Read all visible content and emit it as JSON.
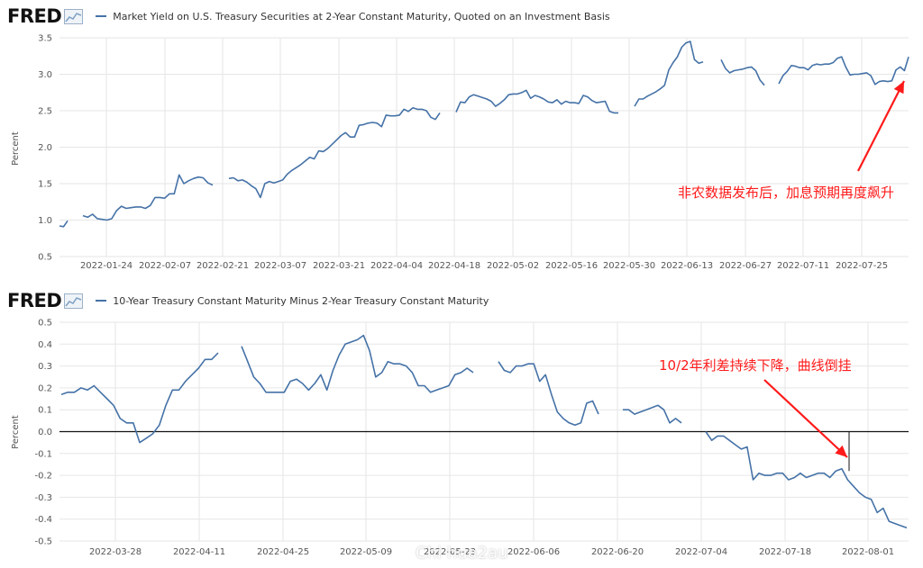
{
  "brand": {
    "logo": "FRED",
    "logo_icon": "fred-chart-icon"
  },
  "colors": {
    "series": "#4572a7",
    "annotation": "#ff1a1a",
    "zero_line": "#111111",
    "grid": "#e6e6e6"
  },
  "watermark": "Chi hua2au",
  "chart_data": [
    {
      "type": "line",
      "title": "Market Yield on U.S. Treasury Securities at 2-Year Constant Maturity, Quoted on an Investment Basis",
      "ylabel": "Percent",
      "xlabel": "",
      "ylim": [
        0.5,
        3.5
      ],
      "yticks": [
        "3.5",
        "3.0",
        "2.5",
        "2.0",
        "1.5",
        "1.0",
        "0.5"
      ],
      "xticks": [
        "2022-01-24",
        "2022-02-07",
        "2022-02-21",
        "2022-03-07",
        "2022-03-21",
        "2022-04-04",
        "2022-04-18",
        "2022-05-02",
        "2022-05-16",
        "2022-05-30",
        "2022-06-13",
        "2022-06-27",
        "2022-07-11",
        "2022-07-25"
      ],
      "grid": true,
      "annotation": "非农数据发布后，加息预期再度飙升",
      "segments": [
        [
          [
            0.92,
            0.91,
            0.99
          ]
        ],
        [
          [
            1.06,
            1.04,
            1.08,
            1.02,
            1.01,
            1.0,
            1.02,
            1.13,
            1.19,
            1.16,
            1.17,
            1.18,
            1.18,
            1.16,
            1.2,
            1.31,
            1.31,
            1.3,
            1.36,
            1.36,
            1.62,
            1.5,
            1.54,
            1.57,
            1.59,
            1.58,
            1.51,
            1.48
          ]
        ],
        [
          [
            1.57,
            1.58,
            1.54,
            1.55,
            1.52,
            1.47,
            1.43,
            1.31,
            1.5,
            1.53,
            1.51,
            1.53,
            1.55,
            1.63,
            1.68,
            1.72,
            1.76,
            1.81,
            1.86,
            1.84,
            1.95,
            1.94,
            1.98,
            2.04,
            2.1,
            2.16,
            2.2,
            2.14,
            2.14,
            2.3,
            2.31,
            2.33,
            2.34,
            2.33,
            2.28,
            2.44,
            2.43,
            2.43,
            2.44,
            2.52,
            2.49,
            2.54,
            2.52,
            2.52,
            2.5,
            2.41,
            2.38,
            2.47
          ]
        ],
        [
          [
            2.48,
            2.62,
            2.61,
            2.69,
            2.72,
            2.7,
            2.68,
            2.66,
            2.63,
            2.56,
            2.6,
            2.65,
            2.72,
            2.73,
            2.73,
            2.75,
            2.78,
            2.67,
            2.71,
            2.69,
            2.66,
            2.62,
            2.61,
            2.65,
            2.59,
            2.63,
            2.61,
            2.61,
            2.6,
            2.71,
            2.69,
            2.64,
            2.61,
            2.62,
            2.63,
            2.49,
            2.47,
            2.47
          ]
        ],
        [
          [
            2.56,
            2.66,
            2.66,
            2.7,
            2.73,
            2.76,
            2.8,
            2.85,
            3.06,
            3.16,
            3.24,
            3.37,
            3.43,
            3.45,
            3.2,
            3.15,
            3.17
          ]
        ],
        [
          [
            3.2,
            3.08,
            3.02,
            3.05,
            3.06,
            3.07,
            3.09,
            3.1,
            3.05,
            2.92,
            2.85
          ]
        ],
        [
          [
            2.87,
            2.98,
            3.04,
            3.12,
            3.11,
            3.09,
            3.09,
            3.06,
            3.12,
            3.14,
            3.13,
            3.14,
            3.14,
            3.16,
            3.22,
            3.24,
            3.1,
            2.99,
            3.0,
            3.0,
            3.01,
            3.02,
            2.98,
            2.86,
            2.9,
            2.91,
            2.9,
            2.91,
            3.06,
            3.1,
            3.05,
            3.24
          ]
        ]
      ]
    },
    {
      "type": "line",
      "title": "10-Year Treasury Constant Maturity Minus 2-Year Treasury Constant Maturity",
      "ylabel": "Percent",
      "xlabel": "",
      "ylim": [
        -0.5,
        0.5
      ],
      "yticks": [
        "0.5",
        "0.4",
        "0.3",
        "0.2",
        "0.1",
        "0.0",
        "-0.1",
        "-0.2",
        "-0.3",
        "-0.4",
        "-0.5"
      ],
      "xticks": [
        "2022-03-28",
        "2022-04-11",
        "2022-04-25",
        "2022-05-09",
        "2022-05-23",
        "2022-06-06",
        "2022-06-20",
        "2022-07-04",
        "2022-07-18",
        "2022-08-01"
      ],
      "grid": true,
      "zero_line": true,
      "annotation": "10/2年利差持续下降，曲线倒挂",
      "segments": [
        [
          [
            0.17,
            0.18,
            0.18,
            0.2,
            0.19,
            0.21,
            0.18,
            0.15,
            0.12,
            0.06,
            0.04,
            0.04,
            -0.05,
            -0.03,
            -0.01,
            0.03,
            0.12,
            0.19,
            0.19,
            0.23,
            0.26,
            0.29,
            0.33,
            0.33,
            0.36
          ]
        ],
        [
          [
            0.39,
            0.32,
            0.25,
            0.22,
            0.18,
            0.18,
            0.18,
            0.18,
            0.23,
            0.24,
            0.22,
            0.19,
            0.22,
            0.26,
            0.19,
            0.28,
            0.35,
            0.4,
            0.41,
            0.42,
            0.44,
            0.37,
            0.25,
            0.27,
            0.32,
            0.31,
            0.31,
            0.3,
            0.27,
            0.21,
            0.21,
            0.18,
            0.19,
            0.2,
            0.21,
            0.26,
            0.27,
            0.29,
            0.27
          ]
        ],
        [
          [
            0.32,
            0.28,
            0.27,
            0.3,
            0.3,
            0.31,
            0.31,
            0.23,
            0.26,
            0.17,
            0.09,
            0.06,
            0.04,
            0.03,
            0.04,
            0.13,
            0.14,
            0.08
          ]
        ],
        [
          [
            0.1,
            0.1,
            0.08,
            0.09,
            0.1,
            0.11,
            0.12,
            0.1,
            0.04,
            0.06,
            0.04
          ]
        ],
        [
          [
            0.0,
            -0.04,
            -0.02,
            -0.02,
            -0.04,
            -0.06,
            -0.08,
            -0.07,
            -0.22,
            -0.19,
            -0.2,
            -0.2,
            -0.19,
            -0.19,
            -0.22,
            -0.21,
            -0.19,
            -0.21,
            -0.2,
            -0.19,
            -0.19,
            -0.21,
            -0.18,
            -0.17,
            -0.22,
            -0.25,
            -0.28,
            -0.3,
            -0.31,
            -0.37,
            -0.35,
            -0.41,
            -0.42,
            -0.43,
            -0.44
          ]
        ]
      ]
    }
  ]
}
